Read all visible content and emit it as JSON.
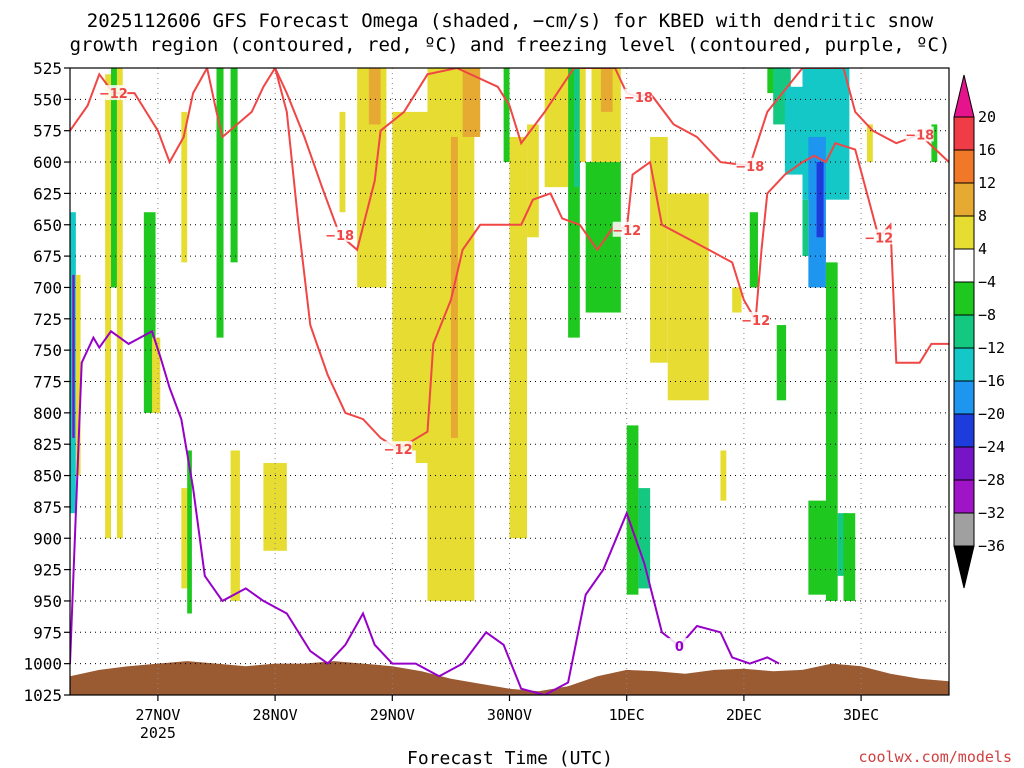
{
  "colors": {
    "isotherm_dgz": "#f04646",
    "freezing_level": "#9600c8",
    "terrain": "#9a5a32",
    "credit": "#d04040"
  },
  "chart_data": {
    "type": "heatmap",
    "title_line1": "2025112606 GFS Forecast Omega (shaded, −cm/s) for KBED with dendritic snow",
    "title_line2": "growth region (contoured, red, ºC) and freezing level (contoured, purple, ºC)",
    "xlabel": "Forecast Time (UTC)",
    "credit": "coolwx.com/models",
    "y_axis": {
      "scale": "pressure",
      "unit": "hPa",
      "ticks": [
        525,
        550,
        575,
        600,
        625,
        650,
        675,
        700,
        725,
        750,
        775,
        800,
        825,
        850,
        875,
        900,
        925,
        950,
        975,
        1000,
        1025
      ],
      "range": [
        525,
        1025
      ],
      "grid": "dotted"
    },
    "x_axis": {
      "range_days": [
        26.25,
        33.75
      ],
      "ticks": [
        {
          "day": 27,
          "label": "27NOV",
          "sublabel": "2025"
        },
        {
          "day": 28,
          "label": "28NOV",
          "sublabel": ""
        },
        {
          "day": 29,
          "label": "29NOV",
          "sublabel": ""
        },
        {
          "day": 30,
          "label": "30NOV",
          "sublabel": ""
        },
        {
          "day": 31,
          "label": "1DEC",
          "sublabel": ""
        },
        {
          "day": 32,
          "label": "2DEC",
          "sublabel": ""
        },
        {
          "day": 33,
          "label": "3DEC",
          "sublabel": ""
        }
      ],
      "grid": "dotted"
    },
    "colorbar": {
      "labels": [
        "20",
        "16",
        "12",
        "8",
        "4",
        "−4",
        "−8",
        "−12",
        "−16",
        "−20",
        "−24",
        "−28",
        "−32",
        "−36"
      ],
      "bands": [
        {
          "color": "#f03c46"
        },
        {
          "color": "#f07828"
        },
        {
          "color": "#e6aa32"
        },
        {
          "color": "#e6dc32"
        },
        {
          "color": "#ffffff"
        },
        {
          "color": "#1ec81e"
        },
        {
          "color": "#14c882"
        },
        {
          "color": "#14c8c8"
        },
        {
          "color": "#1e96f0"
        },
        {
          "color": "#1e3cdc"
        },
        {
          "color": "#7814c8"
        },
        {
          "color": "#a014c8"
        },
        {
          "color": "#a0a0a0"
        }
      ],
      "top_triangle": "#e6148c",
      "bottom_triangle": "#000000"
    },
    "omega_regions": [
      {
        "day0": 26.25,
        "day1": 26.3,
        "p0": 640,
        "p1": 880,
        "value": -12
      },
      {
        "day0": 26.27,
        "day1": 26.29,
        "p0": 690,
        "p1": 820,
        "value": -24
      },
      {
        "day0": 26.3,
        "day1": 26.34,
        "p0": 690,
        "p1": 850,
        "value": 5
      },
      {
        "day0": 26.55,
        "day1": 26.6,
        "p0": 530,
        "p1": 900,
        "value": 5
      },
      {
        "day0": 26.6,
        "day1": 26.66,
        "p0": 525,
        "p1": 700,
        "value": -6
      },
      {
        "day0": 26.65,
        "day1": 26.7,
        "p0": 525,
        "p1": 900,
        "value": 5
      },
      {
        "day0": 26.88,
        "day1": 26.98,
        "p0": 640,
        "p1": 800,
        "value": -6
      },
      {
        "day0": 27.2,
        "day1": 27.25,
        "p0": 560,
        "p1": 680,
        "value": 5
      },
      {
        "day0": 27.2,
        "day1": 27.26,
        "p0": 860,
        "p1": 940,
        "value": 5
      },
      {
        "day0": 27.25,
        "day1": 27.29,
        "p0": 830,
        "p1": 960,
        "value": -6
      },
      {
        "day0": 27.5,
        "day1": 27.56,
        "p0": 525,
        "p1": 740,
        "value": -6
      },
      {
        "day0": 27.62,
        "day1": 27.68,
        "p0": 525,
        "p1": 680,
        "value": -6
      },
      {
        "day0": 27.62,
        "day1": 27.7,
        "p0": 830,
        "p1": 950,
        "value": 5
      },
      {
        "day0": 27.9,
        "day1": 28.1,
        "p0": 840,
        "p1": 910,
        "value": 5
      },
      {
        "day0": 28.55,
        "day1": 28.6,
        "p0": 560,
        "p1": 640,
        "value": 5
      },
      {
        "day0": 28.7,
        "day1": 28.95,
        "p0": 525,
        "p1": 700,
        "value": 5
      },
      {
        "day0": 28.8,
        "day1": 28.9,
        "p0": 525,
        "p1": 570,
        "value": 10
      },
      {
        "day0": 29.0,
        "day1": 29.3,
        "p0": 560,
        "p1": 830,
        "value": 5
      },
      {
        "day0": 29.2,
        "day1": 29.35,
        "p0": 660,
        "p1": 840,
        "value": 5
      },
      {
        "day0": 29.3,
        "day1": 29.7,
        "p0": 525,
        "p1": 950,
        "value": 5
      },
      {
        "day0": 29.5,
        "day1": 29.56,
        "p0": 580,
        "p1": 820,
        "value": 10
      },
      {
        "day0": 29.6,
        "day1": 29.75,
        "p0": 525,
        "p1": 580,
        "value": 10
      },
      {
        "day0": 29.95,
        "day1": 30.0,
        "p0": 525,
        "p1": 600,
        "value": -6
      },
      {
        "day0": 30.0,
        "day1": 30.15,
        "p0": 580,
        "p1": 900,
        "value": 5
      },
      {
        "day0": 30.15,
        "day1": 30.25,
        "p0": 570,
        "p1": 660,
        "value": 5
      },
      {
        "day0": 30.3,
        "day1": 30.5,
        "p0": 525,
        "p1": 620,
        "value": 5
      },
      {
        "day0": 30.5,
        "day1": 30.6,
        "p0": 525,
        "p1": 740,
        "value": -6
      },
      {
        "day0": 30.55,
        "day1": 30.6,
        "p0": 525,
        "p1": 620,
        "value": -10
      },
      {
        "day0": 30.6,
        "day1": 30.65,
        "p0": 525,
        "p1": 600,
        "value": 5
      },
      {
        "day0": 30.65,
        "day1": 30.95,
        "p0": 600,
        "p1": 720,
        "value": -6
      },
      {
        "day0": 30.7,
        "day1": 30.95,
        "p0": 525,
        "p1": 600,
        "value": 5
      },
      {
        "day0": 30.78,
        "day1": 30.88,
        "p0": 525,
        "p1": 560,
        "value": 10
      },
      {
        "day0": 31.0,
        "day1": 31.1,
        "p0": 810,
        "p1": 945,
        "value": -6
      },
      {
        "day0": 31.1,
        "day1": 31.2,
        "p0": 860,
        "p1": 940,
        "value": -9
      },
      {
        "day0": 31.2,
        "day1": 31.35,
        "p0": 580,
        "p1": 760,
        "value": 5
      },
      {
        "day0": 31.35,
        "day1": 31.7,
        "p0": 625,
        "p1": 790,
        "value": 5
      },
      {
        "day0": 31.8,
        "day1": 31.85,
        "p0": 830,
        "p1": 870,
        "value": 5
      },
      {
        "day0": 31.9,
        "day1": 31.98,
        "p0": 700,
        "p1": 720,
        "value": 5
      },
      {
        "day0": 32.05,
        "day1": 32.12,
        "p0": 640,
        "p1": 700,
        "value": -6
      },
      {
        "day0": 32.2,
        "day1": 32.3,
        "p0": 525,
        "p1": 545,
        "value": -6
      },
      {
        "day0": 32.28,
        "day1": 32.36,
        "p0": 730,
        "p1": 790,
        "value": -6
      },
      {
        "day0": 32.25,
        "day1": 32.4,
        "p0": 525,
        "p1": 570,
        "value": -10
      },
      {
        "day0": 32.35,
        "day1": 32.5,
        "p0": 540,
        "p1": 610,
        "value": -14
      },
      {
        "day0": 32.5,
        "day1": 32.9,
        "p0": 525,
        "p1": 630,
        "value": -12
      },
      {
        "day0": 32.55,
        "day1": 32.7,
        "p0": 580,
        "p1": 700,
        "value": -17
      },
      {
        "day0": 32.62,
        "day1": 32.68,
        "p0": 600,
        "p1": 660,
        "value": -22
      },
      {
        "day0": 32.5,
        "day1": 32.55,
        "p0": 630,
        "p1": 675,
        "value": -9
      },
      {
        "day0": 32.7,
        "day1": 32.8,
        "p0": 680,
        "p1": 950,
        "value": -6
      },
      {
        "day0": 32.55,
        "day1": 32.72,
        "p0": 870,
        "p1": 945,
        "value": -6
      },
      {
        "day0": 32.8,
        "day1": 32.88,
        "p0": 880,
        "p1": 930,
        "value": -9
      },
      {
        "day0": 32.85,
        "day1": 32.95,
        "p0": 880,
        "p1": 950,
        "value": -6
      },
      {
        "day0": 33.05,
        "day1": 33.1,
        "p0": 570,
        "p1": 600,
        "value": 5
      },
      {
        "day0": 33.6,
        "day1": 33.65,
        "p0": 570,
        "p1": 600,
        "value": -6
      },
      {
        "day0": 26.95,
        "day1": 27.02,
        "p0": 740,
        "p1": 800,
        "value": 5
      }
    ],
    "isotherm_contours": [
      {
        "label": "−12",
        "label_positions": [
          [
            26.62,
            545
          ],
          [
            29.05,
            829
          ],
          [
            31.0,
            654
          ],
          [
            32.1,
            726
          ],
          [
            33.15,
            660
          ]
        ],
        "path": [
          [
            26.25,
            575
          ],
          [
            26.4,
            555
          ],
          [
            26.5,
            530
          ],
          [
            26.62,
            545
          ],
          [
            26.8,
            545
          ],
          [
            27.0,
            575
          ],
          [
            27.1,
            600
          ],
          [
            27.22,
            580
          ],
          [
            27.3,
            545
          ],
          [
            27.42,
            525
          ],
          [
            27.5,
            560
          ],
          [
            27.55,
            580
          ],
          [
            27.8,
            560
          ],
          [
            27.9,
            540
          ],
          [
            28.0,
            525
          ],
          [
            28.1,
            560
          ],
          [
            28.2,
            650
          ],
          [
            28.3,
            730
          ],
          [
            28.45,
            770
          ],
          [
            28.6,
            800
          ],
          [
            28.75,
            805
          ],
          [
            28.9,
            820
          ],
          [
            29.05,
            829
          ],
          [
            29.3,
            815
          ],
          [
            29.35,
            745
          ],
          [
            29.5,
            710
          ],
          [
            29.6,
            670
          ],
          [
            29.75,
            650
          ],
          [
            30.1,
            650
          ],
          [
            30.2,
            630
          ],
          [
            30.35,
            625
          ],
          [
            30.45,
            645
          ],
          [
            30.6,
            650
          ],
          [
            30.75,
            670
          ],
          [
            30.9,
            650
          ],
          [
            31.0,
            654
          ],
          [
            31.05,
            610
          ],
          [
            31.2,
            600
          ],
          [
            31.25,
            625
          ],
          [
            31.3,
            650
          ],
          [
            31.5,
            660
          ],
          [
            31.7,
            670
          ],
          [
            31.9,
            680
          ],
          [
            32.0,
            710
          ],
          [
            32.1,
            726
          ],
          [
            32.15,
            670
          ],
          [
            32.2,
            625
          ],
          [
            32.35,
            610
          ],
          [
            32.5,
            600
          ],
          [
            32.6,
            595
          ],
          [
            32.7,
            600
          ],
          [
            32.78,
            585
          ],
          [
            32.95,
            590
          ],
          [
            33.05,
            625
          ],
          [
            33.15,
            660
          ],
          [
            33.25,
            650
          ],
          [
            33.3,
            760
          ],
          [
            33.5,
            760
          ],
          [
            33.6,
            745
          ],
          [
            33.75,
            745
          ]
        ]
      },
      {
        "label": "−18",
        "label_positions": [
          [
            28.55,
            658
          ],
          [
            31.1,
            548
          ],
          [
            32.05,
            603
          ],
          [
            33.5,
            578
          ]
        ],
        "path": [
          [
            28.0,
            525
          ],
          [
            28.1,
            545
          ],
          [
            28.25,
            580
          ],
          [
            28.4,
            620
          ],
          [
            28.55,
            658
          ],
          [
            28.7,
            670
          ],
          [
            28.85,
            615
          ],
          [
            28.9,
            575
          ],
          [
            29.1,
            560
          ],
          [
            29.3,
            530
          ],
          [
            29.55,
            525
          ],
          [
            29.9,
            540
          ],
          [
            30.0,
            555
          ],
          [
            30.1,
            585
          ],
          [
            30.3,
            560
          ],
          [
            30.55,
            525
          ],
          [
            30.9,
            525
          ],
          [
            31.0,
            545
          ],
          [
            31.1,
            548
          ],
          [
            31.2,
            545
          ],
          [
            31.4,
            570
          ],
          [
            31.6,
            580
          ],
          [
            31.7,
            590
          ],
          [
            31.8,
            600
          ],
          [
            32.05,
            603
          ],
          [
            32.2,
            560
          ],
          [
            32.5,
            525
          ],
          [
            32.85,
            525
          ],
          [
            32.95,
            560
          ],
          [
            33.1,
            575
          ],
          [
            33.3,
            585
          ],
          [
            33.5,
            578
          ],
          [
            33.75,
            600
          ]
        ]
      }
    ],
    "freezing_level_contours": [
      {
        "label": "0",
        "label_positions": [
          [
            31.45,
            986
          ]
        ],
        "path": [
          [
            26.25,
            1000
          ],
          [
            26.35,
            760
          ],
          [
            26.45,
            740
          ],
          [
            26.5,
            748
          ],
          [
            26.6,
            735
          ],
          [
            26.75,
            745
          ],
          [
            26.95,
            735
          ],
          [
            27.02,
            755
          ],
          [
            27.1,
            780
          ],
          [
            27.2,
            805
          ],
          [
            27.3,
            860
          ],
          [
            27.4,
            930
          ],
          [
            27.55,
            950
          ],
          [
            27.75,
            940
          ],
          [
            27.9,
            950
          ],
          [
            28.1,
            960
          ],
          [
            28.3,
            990
          ],
          [
            28.45,
            1000
          ],
          [
            28.6,
            985
          ],
          [
            28.75,
            960
          ],
          [
            28.85,
            985
          ],
          [
            29.0,
            1000
          ],
          [
            29.2,
            1000
          ],
          [
            29.4,
            1010
          ],
          [
            29.6,
            1000
          ],
          [
            29.8,
            975
          ],
          [
            29.95,
            985
          ],
          [
            30.1,
            1020
          ],
          [
            30.3,
            1025
          ],
          [
            30.5,
            1015
          ],
          [
            30.65,
            945
          ],
          [
            30.8,
            925
          ],
          [
            31.0,
            880
          ],
          [
            31.15,
            920
          ],
          [
            31.3,
            975
          ],
          [
            31.45,
            986
          ],
          [
            31.6,
            970
          ],
          [
            31.8,
            975
          ],
          [
            31.9,
            995
          ],
          [
            32.05,
            1000
          ],
          [
            32.2,
            995
          ],
          [
            32.3,
            1000
          ]
        ]
      }
    ],
    "terrain_profile": [
      [
        26.25,
        1010
      ],
      [
        26.5,
        1005
      ],
      [
        26.75,
        1002
      ],
      [
        27.0,
        1000
      ],
      [
        27.25,
        998
      ],
      [
        27.5,
        1000
      ],
      [
        27.75,
        1002
      ],
      [
        28.0,
        1000
      ],
      [
        28.25,
        1000
      ],
      [
        28.5,
        998
      ],
      [
        28.75,
        1000
      ],
      [
        29.0,
        1002
      ],
      [
        29.25,
        1006
      ],
      [
        29.5,
        1012
      ],
      [
        29.75,
        1016
      ],
      [
        30.0,
        1020
      ],
      [
        30.25,
        1022
      ],
      [
        30.5,
        1018
      ],
      [
        30.75,
        1010
      ],
      [
        31.0,
        1005
      ],
      [
        31.25,
        1006
      ],
      [
        31.5,
        1008
      ],
      [
        31.75,
        1005
      ],
      [
        32.0,
        1004
      ],
      [
        32.25,
        1006
      ],
      [
        32.5,
        1005
      ],
      [
        32.75,
        1000
      ],
      [
        33.0,
        1002
      ],
      [
        33.25,
        1008
      ],
      [
        33.5,
        1012
      ],
      [
        33.75,
        1014
      ]
    ]
  }
}
